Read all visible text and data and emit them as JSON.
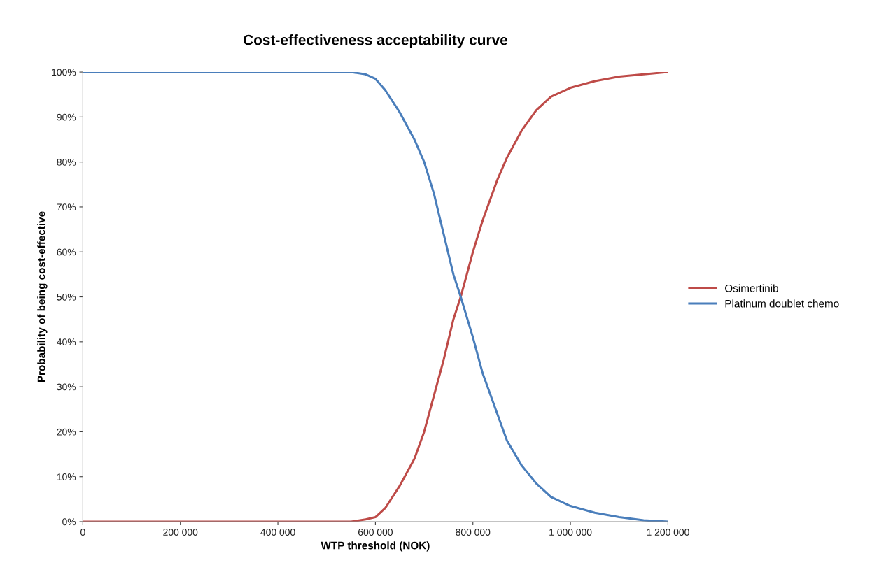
{
  "chart_data": {
    "type": "line",
    "title": "Cost-effectiveness acceptability curve",
    "xlabel": "WTP threshold (NOK)",
    "ylabel": "Probability of being cost-effective",
    "x": [
      0,
      100000,
      200000,
      300000,
      400000,
      500000,
      550000,
      580000,
      600000,
      620000,
      650000,
      680000,
      700000,
      720000,
      740000,
      760000,
      775000,
      800000,
      820000,
      850000,
      870000,
      900000,
      930000,
      960000,
      1000000,
      1050000,
      1100000,
      1150000,
      1200000
    ],
    "series": [
      {
        "name": "Osimertinib",
        "color": "#be4b48",
        "values": [
          0,
          0,
          0,
          0,
          0,
          0,
          0,
          0.005,
          0.01,
          0.03,
          0.08,
          0.14,
          0.2,
          0.28,
          0.36,
          0.45,
          0.5,
          0.6,
          0.67,
          0.76,
          0.81,
          0.87,
          0.915,
          0.945,
          0.965,
          0.98,
          0.99,
          0.995,
          1
        ]
      },
      {
        "name": "Platinum doublet chemo",
        "color": "#4a7ebb",
        "values": [
          1,
          1,
          1,
          1,
          1,
          1,
          1,
          0.995,
          0.985,
          0.96,
          0.91,
          0.85,
          0.8,
          0.73,
          0.64,
          0.55,
          0.5,
          0.41,
          0.33,
          0.24,
          0.18,
          0.125,
          0.085,
          0.055,
          0.035,
          0.02,
          0.01,
          0.003,
          0
        ]
      }
    ],
    "xlim": [
      0,
      1200000
    ],
    "xticks": [
      {
        "value": 0,
        "label": "0"
      },
      {
        "value": 200000,
        "label": "200 000"
      },
      {
        "value": 400000,
        "label": "400 000"
      },
      {
        "value": 600000,
        "label": "600 000"
      },
      {
        "value": 800000,
        "label": "800 000"
      },
      {
        "value": 1000000,
        "label": "1 000 000"
      },
      {
        "value": 1200000,
        "label": "1 200 000"
      }
    ],
    "ylim": [
      0,
      1
    ],
    "yticks": [
      {
        "value": 0,
        "label": "0%"
      },
      {
        "value": 0.1,
        "label": "10%"
      },
      {
        "value": 0.2,
        "label": "20%"
      },
      {
        "value": 0.3,
        "label": "30%"
      },
      {
        "value": 0.4,
        "label": "40%"
      },
      {
        "value": 0.5,
        "label": "50%"
      },
      {
        "value": 0.6,
        "label": "60%"
      },
      {
        "value": 0.7,
        "label": "70%"
      },
      {
        "value": 0.8,
        "label": "80%"
      },
      {
        "value": 0.9,
        "label": "90%"
      },
      {
        "value": 1,
        "label": "100%"
      }
    ],
    "grid": false,
    "legend": "right",
    "marker": "none",
    "line_style": "solid"
  }
}
